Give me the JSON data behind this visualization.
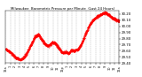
{
  "title": "Milwaukee  Barometric Pressure per Minute  (Last 24 Hours)",
  "line_color": "#ff0000",
  "background_color": "#ffffff",
  "plot_bg_color": "#ffffff",
  "grid_color": "#999999",
  "y_min": 29.4,
  "y_max": 30.25,
  "y_ticks": [
    29.4,
    29.5,
    29.6,
    29.7,
    29.8,
    29.9,
    30.0,
    30.1,
    30.2
  ],
  "num_points": 1440,
  "waypoints": [
    [
      0,
      29.63
    ],
    [
      60,
      29.58
    ],
    [
      120,
      29.5
    ],
    [
      180,
      29.46
    ],
    [
      220,
      29.48
    ],
    [
      270,
      29.57
    ],
    [
      320,
      29.7
    ],
    [
      370,
      29.83
    ],
    [
      410,
      29.87
    ],
    [
      450,
      29.8
    ],
    [
      490,
      29.72
    ],
    [
      540,
      29.68
    ],
    [
      590,
      29.74
    ],
    [
      630,
      29.72
    ],
    [
      670,
      29.65
    ],
    [
      720,
      29.57
    ],
    [
      760,
      29.58
    ],
    [
      800,
      29.56
    ],
    [
      830,
      29.61
    ],
    [
      870,
      29.6
    ],
    [
      920,
      29.63
    ],
    [
      960,
      29.72
    ],
    [
      1010,
      29.87
    ],
    [
      1060,
      30.02
    ],
    [
      1110,
      30.1
    ],
    [
      1160,
      30.16
    ],
    [
      1210,
      30.2
    ],
    [
      1260,
      30.22
    ],
    [
      1310,
      30.18
    ],
    [
      1360,
      30.13
    ],
    [
      1400,
      30.1
    ],
    [
      1439,
      30.08
    ]
  ],
  "x_tick_labels": [
    "12a",
    "1",
    "2",
    "3",
    "4",
    "5",
    "6",
    "7",
    "8",
    "9",
    "10",
    "11",
    "12p",
    "1",
    "2",
    "3",
    "4",
    "5",
    "6",
    "7",
    "8",
    "9",
    "10",
    "11",
    "12a"
  ]
}
